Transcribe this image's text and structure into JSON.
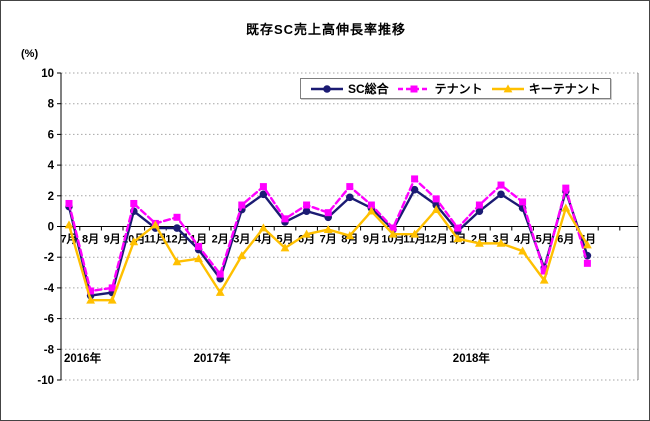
{
  "title": "既存SC売上高伸長率推移",
  "y_axis_unit": "(%)",
  "legend": [
    {
      "label": "SC総合"
    },
    {
      "label": "テナント"
    },
    {
      "label": "キーテナント"
    }
  ],
  "chart_data": {
    "type": "line",
    "title": "既存SC売上高伸長率推移",
    "ylabel": "(%)",
    "ylim": [
      -10,
      10
    ],
    "y_ticks": [
      10,
      8,
      6,
      4,
      2,
      0,
      -2,
      -4,
      -6,
      -8,
      -10
    ],
    "grid": "dotted",
    "legend_position": "top-center-boxed",
    "categories": [
      "7月",
      "8月",
      "9月",
      "10月",
      "11月",
      "12月",
      "1月",
      "2月",
      "3月",
      "4月",
      "5月",
      "6月",
      "7月",
      "8月",
      "9月",
      "10月",
      "11月",
      "12月",
      "1月",
      "2月",
      "3月",
      "4月",
      "5月",
      "6月",
      "7月"
    ],
    "year_labels": [
      {
        "text": "2016年",
        "index": 0
      },
      {
        "text": "2017年",
        "index": 6
      },
      {
        "text": "2018年",
        "index": 18
      }
    ],
    "series": [
      {
        "name": "SC総合",
        "color": "#1b1b73",
        "line_style": "solid",
        "marker": "circle",
        "values": [
          1.3,
          -4.5,
          -4.3,
          1.0,
          -0.1,
          -0.1,
          -1.5,
          -3.4,
          1.1,
          2.1,
          0.3,
          1.0,
          0.6,
          1.9,
          1.2,
          -0.2,
          2.4,
          1.4,
          -0.3,
          1.0,
          2.1,
          1.2,
          -2.7,
          2.3,
          -1.9
        ]
      },
      {
        "name": "テナント",
        "color": "#ff00ff",
        "line_style": "dashed",
        "marker": "square",
        "values": [
          1.5,
          -4.2,
          -4.0,
          1.5,
          0.2,
          0.6,
          -1.3,
          -3.1,
          1.4,
          2.6,
          0.5,
          1.4,
          0.9,
          2.6,
          1.4,
          -0.1,
          3.1,
          1.8,
          -0.1,
          1.4,
          2.7,
          1.6,
          -2.9,
          2.5,
          -2.4
        ]
      },
      {
        "name": "キーテナント",
        "color": "#ffc000",
        "line_style": "solid",
        "marker": "triangle",
        "values": [
          0.1,
          -4.8,
          -4.8,
          -1.0,
          0.1,
          -2.3,
          -2.1,
          -4.3,
          -1.9,
          -0.1,
          -1.4,
          -0.5,
          -0.2,
          -0.6,
          1.0,
          -0.5,
          -0.5,
          1.1,
          -0.8,
          -1.1,
          -1.1,
          -1.6,
          -3.5,
          1.2,
          -1.2
        ]
      }
    ],
    "colors": {
      "axis": "#000000",
      "gridline": "#a6a6a6",
      "background": "#ffffff"
    }
  }
}
